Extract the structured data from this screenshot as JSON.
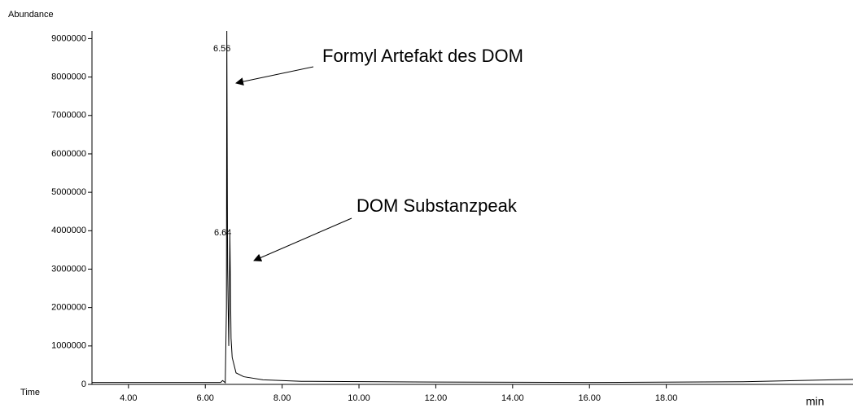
{
  "chart_data": {
    "type": "line",
    "ylabel": "Abundance",
    "xlabel": "Time",
    "xunit": "min",
    "xlim": [
      3.05,
      22.86
    ],
    "ylim": [
      0,
      9200000
    ],
    "xticks": [
      {
        "value": 4,
        "label": "4.00"
      },
      {
        "value": 6,
        "label": "6.00"
      },
      {
        "value": 8,
        "label": "8.00"
      },
      {
        "value": 10,
        "label": "10.00"
      },
      {
        "value": 12,
        "label": "12.00"
      },
      {
        "value": 14,
        "label": "14.00"
      },
      {
        "value": 16,
        "label": "16.00"
      },
      {
        "value": 18,
        "label": "18.00"
      }
    ],
    "yticks": [
      0,
      1000000,
      2000000,
      3000000,
      4000000,
      5000000,
      6000000,
      7000000,
      8000000,
      9000000
    ],
    "color": "#000000",
    "x": [
      3.05,
      6.4,
      6.45,
      6.5,
      6.52,
      6.55,
      6.56,
      6.58,
      6.61,
      6.64,
      6.67,
      6.7,
      6.75,
      6.8,
      7.0,
      7.5,
      8.5,
      12,
      16,
      20,
      22.86
    ],
    "values": [
      50000,
      50000,
      100000,
      60000,
      40000,
      2000000,
      9200000,
      3000000,
      1000000,
      3900000,
      1200000,
      700000,
      500000,
      300000,
      200000,
      120000,
      80000,
      60000,
      50000,
      70000,
      130000
    ],
    "annotations": [
      "6.56",
      "6.64",
      "Formyl Artefakt des DOM",
      "DOM Substanzpeak"
    ]
  }
}
